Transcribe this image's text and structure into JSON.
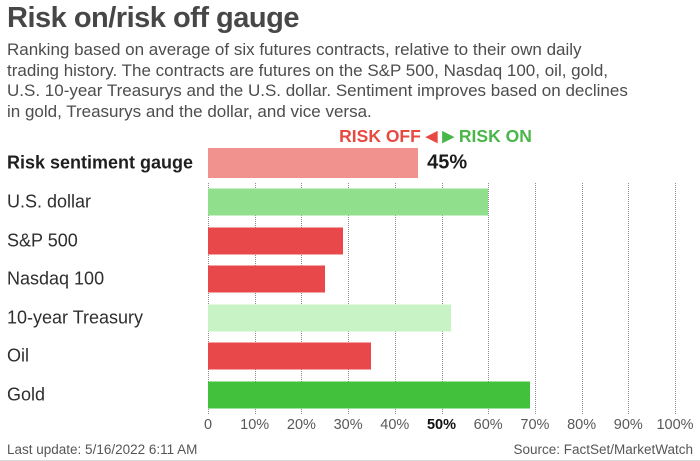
{
  "header": {
    "title": "Risk on/risk off gauge",
    "subtitle_lines": [
      "Ranking based on average of six futures contracts, relative to their own daily",
      "trading history. The contracts are futures on the S&P 500, Nasdaq 100, oil, gold,",
      "U.S. 10-year Treasurys and the U.S. dollar. Sentiment improves based on declines",
      "in gold, Treasurys and the dollar, and vice versa."
    ]
  },
  "legend": {
    "risk_off_label": "RISK OFF",
    "risk_on_label": "RISK ON",
    "off_arrow_icon": "◀",
    "on_arrow_icon": "▶",
    "risk_off_color": "#e64a42",
    "risk_on_color": "#49b649"
  },
  "chart_data": {
    "type": "bar",
    "orientation": "horizontal",
    "title": "Risk on/risk off gauge",
    "xlabel": "",
    "ylabel": "",
    "xlim": [
      0,
      100
    ],
    "x_tick_labels": [
      "0",
      "10%",
      "20%",
      "30%",
      "40%",
      "50%",
      "60%",
      "70%",
      "80%",
      "90%",
      "100%"
    ],
    "bold_tick_index": 5,
    "grid": "vertical-dotted",
    "gridline_color": "#8c8c8c",
    "rows": [
      {
        "label": "Risk sentiment gauge",
        "value": 45,
        "color": "#f1928e",
        "value_label": "45%"
      },
      {
        "label": "U.S. dollar",
        "value": 60,
        "color": "#90df8d"
      },
      {
        "label": "S&P 500",
        "value": 29,
        "color": "#e8484a"
      },
      {
        "label": "Nasdaq 100",
        "value": 25,
        "color": "#e8484a"
      },
      {
        "label": "10-year Treasury",
        "value": 52,
        "color": "#c8f3c4"
      },
      {
        "label": "Oil",
        "value": 35,
        "color": "#e8484a"
      },
      {
        "label": "Gold",
        "value": 69,
        "color": "#41c13c"
      }
    ]
  },
  "footer": {
    "last_update": "Last update: 5/16/2022 6:11 AM",
    "source": "Source: FactSet/MarketWatch"
  }
}
